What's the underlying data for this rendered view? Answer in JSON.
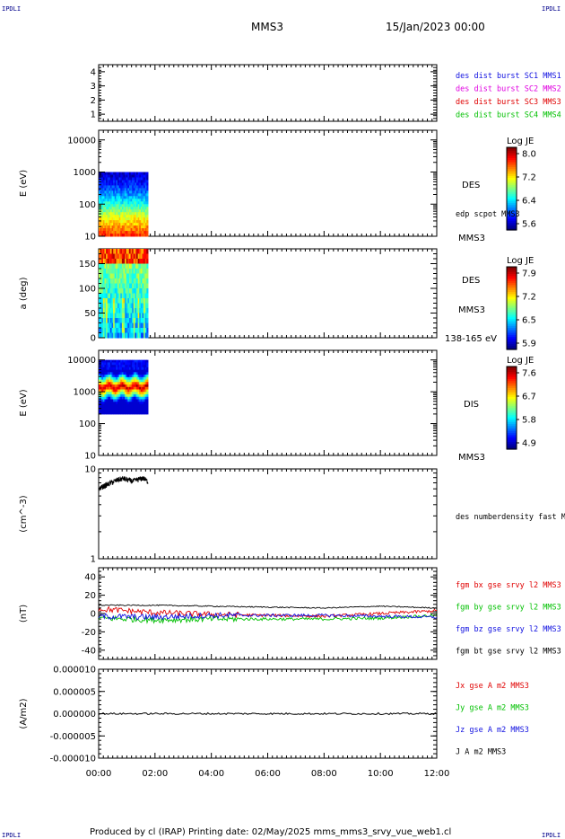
{
  "header": {
    "corner_tl": "IPDLI",
    "corner_tr": "IPDLI",
    "corner_bl": "IPDLI",
    "corner_br": "IPDLI",
    "spacecraft": "MMS3",
    "date": "15/Jan/2023 00:00"
  },
  "footer": {
    "text": "Produced by cl (IRAP)   Printing date: 02/May/2025   mms_mms3_srvy_vue_web1.cl"
  },
  "colors": {
    "blue": "#1010e0",
    "magenta": "#e000e0",
    "red": "#e00000",
    "green": "#00c000",
    "black": "#000000"
  },
  "chart_data": [
    {
      "type": "line",
      "id": "burst",
      "ylim": [
        0.5,
        4.5
      ],
      "yticks": [
        "1",
        "2",
        "3",
        "4"
      ],
      "legend": [
        {
          "text": "des dist burst SC1 MMS1",
          "color": "#1010e0"
        },
        {
          "text": "des dist burst SC2 MMS2",
          "color": "#e000e0"
        },
        {
          "text": "des dist burst SC3 MMS3",
          "color": "#e00000"
        },
        {
          "text": "des dist burst SC4 MMS4",
          "color": "#00c000"
        }
      ]
    },
    {
      "type": "heatmap",
      "id": "des-energy",
      "ylabel": "E (eV)",
      "yscale": "log",
      "ylim": [
        10,
        20000
      ],
      "yticks": [
        "10",
        "100",
        "1000",
        "10000"
      ],
      "data_time_range": [
        "00:00",
        "01:45"
      ],
      "data_energy_range": [
        10,
        1000
      ],
      "colorbar": {
        "title": "Log JE",
        "ticks": [
          "8.0",
          "7.2",
          "6.4",
          "5.6"
        ]
      },
      "side_labels": [
        "DES",
        "edp scpot MMS3",
        "MMS3"
      ]
    },
    {
      "type": "heatmap",
      "id": "des-pitch",
      "ylabel": "a (deg)",
      "ylim": [
        0,
        180
      ],
      "yticks": [
        "0",
        "50",
        "100",
        "150"
      ],
      "data_time_range": [
        "00:00",
        "01:45"
      ],
      "colorbar": {
        "title": "Log JE",
        "ticks": [
          "7.9",
          "7.2",
          "6.5",
          "5.9"
        ]
      },
      "side_labels": [
        "DES",
        "MMS3",
        "138-165 eV"
      ]
    },
    {
      "type": "heatmap",
      "id": "dis-energy",
      "ylabel": "E (eV)",
      "yscale": "log",
      "ylim": [
        10,
        20000
      ],
      "yticks": [
        "10",
        "100",
        "1000",
        "10000"
      ],
      "data_time_range": [
        "00:00",
        "01:45"
      ],
      "data_energy_range": [
        200,
        10000
      ],
      "colorbar": {
        "title": "Log JE",
        "ticks": [
          "7.6",
          "6.7",
          "5.8",
          "4.9"
        ]
      },
      "side_labels": [
        "DIS",
        "MMS3"
      ]
    },
    {
      "type": "line",
      "id": "density",
      "ylabel": "(cm^-3)",
      "yscale": "log",
      "ylim": [
        1,
        10
      ],
      "yticks": [
        "1",
        "10"
      ],
      "side_labels": [
        "des numberdensity fast M"
      ],
      "series": [
        {
          "name": "des numberdensity fast M",
          "x_range": [
            "00:00",
            "01:45"
          ],
          "values_approx": [
            6.0,
            6.4,
            6.8,
            7.2,
            7.6,
            7.8,
            7.5,
            7.3,
            7.6,
            7.9,
            7.2
          ]
        }
      ]
    },
    {
      "type": "line",
      "id": "fgm",
      "ylabel": "(nT)",
      "ylim": [
        -50,
        50
      ],
      "yticks": [
        "-40",
        "-20",
        "0",
        "20",
        "40"
      ],
      "x": [
        "00:00",
        "02:00",
        "04:00",
        "06:00",
        "08:00",
        "10:00",
        "12:00"
      ],
      "series": [
        {
          "name": "fgm bx gse srvy l2 MMS3",
          "color": "#e00000",
          "values": [
            5,
            1,
            -1,
            -2,
            -3,
            0,
            3
          ]
        },
        {
          "name": "fgm by gse srvy l2 MMS3",
          "color": "#00c000",
          "values": [
            -5,
            -7,
            -6,
            -6,
            -6,
            -5,
            -2
          ]
        },
        {
          "name": "fgm bz gse srvy l2 MMS3",
          "color": "#1010e0",
          "values": [
            -3,
            -4,
            -2,
            -2,
            -2,
            -3,
            -4
          ]
        },
        {
          "name": "fgm bt gse srvy l2 MMS3",
          "color": "#000000",
          "values": [
            9,
            9,
            8,
            7,
            6,
            8,
            6
          ]
        }
      ]
    },
    {
      "type": "line",
      "id": "current",
      "ylabel": "(A/m2)",
      "ylim": [
        -1e-05,
        1e-05
      ],
      "yticks": [
        "-0.000010",
        "-0.000005",
        "0.000000",
        "0.000005",
        "0.000010"
      ],
      "xlabels": [
        "00:00",
        "02:00",
        "04:00",
        "06:00",
        "08:00",
        "10:00",
        "12:00"
      ],
      "series": [
        {
          "name": "Jx gse A m2 MMS3",
          "color": "#e00000",
          "values": [
            0,
            0,
            0,
            0,
            0,
            0,
            0
          ]
        },
        {
          "name": "Jy gse A m2 MMS3",
          "color": "#00c000",
          "values": [
            0,
            0,
            0,
            0,
            0,
            0,
            0
          ]
        },
        {
          "name": "Jz gse A m2 MMS3",
          "color": "#1010e0",
          "values": [
            0,
            0,
            0,
            0,
            0,
            0,
            0
          ]
        },
        {
          "name": "J A m2 MMS3",
          "color": "#000000",
          "values": [
            0,
            0,
            0,
            0,
            0,
            0,
            0
          ]
        }
      ]
    }
  ]
}
